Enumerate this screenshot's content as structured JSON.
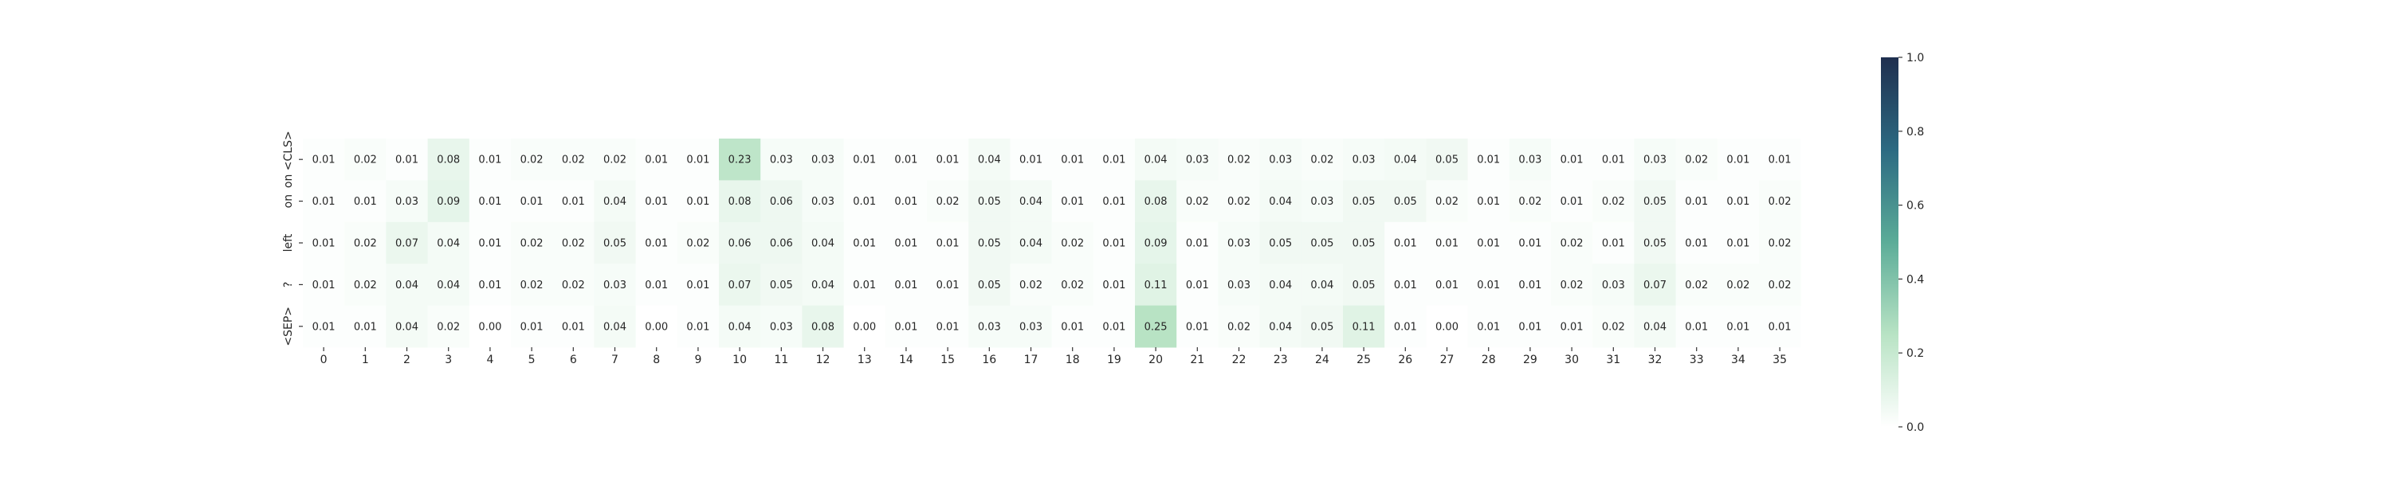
{
  "chart_data": {
    "type": "heatmap",
    "title": "",
    "xlabel": "",
    "ylabel": "",
    "x_categories": [
      "0",
      "1",
      "2",
      "3",
      "4",
      "5",
      "6",
      "7",
      "8",
      "9",
      "10",
      "11",
      "12",
      "13",
      "14",
      "15",
      "16",
      "17",
      "18",
      "19",
      "20",
      "21",
      "22",
      "23",
      "24",
      "25",
      "26",
      "27",
      "28",
      "29",
      "30",
      "31",
      "32",
      "33",
      "34",
      "35"
    ],
    "y_categories": [
      "on <CLS>",
      "on",
      "left",
      "?",
      "<SEP>"
    ],
    "values": [
      [
        0.01,
        0.02,
        0.01,
        0.08,
        0.01,
        0.02,
        0.02,
        0.02,
        0.01,
        0.01,
        0.23,
        0.03,
        0.03,
        0.01,
        0.01,
        0.01,
        0.04,
        0.01,
        0.01,
        0.01,
        0.04,
        0.03,
        0.02,
        0.03,
        0.02,
        0.03,
        0.04,
        0.05,
        0.01,
        0.03,
        0.01,
        0.01,
        0.03,
        0.02,
        0.01,
        0.01
      ],
      [
        0.01,
        0.01,
        0.03,
        0.09,
        0.01,
        0.01,
        0.01,
        0.04,
        0.01,
        0.01,
        0.08,
        0.06,
        0.03,
        0.01,
        0.01,
        0.02,
        0.05,
        0.04,
        0.01,
        0.01,
        0.08,
        0.02,
        0.02,
        0.04,
        0.03,
        0.05,
        0.05,
        0.02,
        0.01,
        0.02,
        0.01,
        0.02,
        0.05,
        0.01,
        0.01,
        0.02
      ],
      [
        0.01,
        0.02,
        0.07,
        0.04,
        0.01,
        0.02,
        0.02,
        0.05,
        0.01,
        0.02,
        0.06,
        0.06,
        0.04,
        0.01,
        0.01,
        0.01,
        0.05,
        0.04,
        0.02,
        0.01,
        0.09,
        0.01,
        0.03,
        0.05,
        0.05,
        0.05,
        0.01,
        0.01,
        0.01,
        0.01,
        0.02,
        0.01,
        0.05,
        0.01,
        0.01,
        0.02
      ],
      [
        0.01,
        0.02,
        0.04,
        0.04,
        0.01,
        0.02,
        0.02,
        0.03,
        0.01,
        0.01,
        0.07,
        0.05,
        0.04,
        0.01,
        0.01,
        0.01,
        0.05,
        0.02,
        0.02,
        0.01,
        0.11,
        0.01,
        0.03,
        0.04,
        0.04,
        0.05,
        0.01,
        0.01,
        0.01,
        0.01,
        0.02,
        0.03,
        0.07,
        0.02,
        0.02,
        0.02
      ],
      [
        0.01,
        0.01,
        0.04,
        0.02,
        0.0,
        0.01,
        0.01,
        0.04,
        0.0,
        0.01,
        0.04,
        0.03,
        0.08,
        0.0,
        0.01,
        0.01,
        0.03,
        0.03,
        0.01,
        0.01,
        0.25,
        0.01,
        0.02,
        0.04,
        0.05,
        0.11,
        0.01,
        0.0,
        0.01,
        0.01,
        0.01,
        0.02,
        0.04,
        0.01,
        0.01,
        0.01
      ]
    ],
    "value_range": [
      0.0,
      1.0
    ],
    "colorbar_ticks": [
      "0.0",
      "0.2",
      "0.4",
      "0.6",
      "0.8",
      "1.0"
    ],
    "colormap": [
      "#ffffff",
      "#b8e3c4",
      "#5bac98",
      "#2c6a82",
      "#1f2f4f"
    ],
    "annotation_format": "2 decimals",
    "grid": false,
    "legend": "colorbar-right"
  }
}
